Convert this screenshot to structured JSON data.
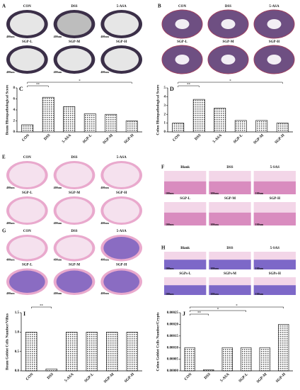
{
  "image_panels": [
    {
      "label": "A",
      "titles": [
        "CON",
        "DSS",
        "5-ASA",
        "SGP-L",
        "SGP-M",
        "SGP-H"
      ],
      "scale": "400um"
    },
    {
      "label": "B",
      "titles": [
        "CON",
        "DSS",
        "5-ASA",
        "SGP-L",
        "SGP-M",
        "SGP-H"
      ]
    },
    {
      "label": "E",
      "titles": [
        "CON",
        "DSS",
        "5-ASA",
        "SGP-L",
        "SGP-M",
        "SGP-H"
      ],
      "scale": "400um"
    },
    {
      "label": "F",
      "titles": [
        "Blank",
        "DSS",
        "5-SAS",
        "SGP-L",
        "SGP-M",
        "SGP-H"
      ],
      "scale": "100um"
    },
    {
      "label": "G",
      "titles": [
        "CON",
        "DSS",
        "5-ASA",
        "SGP-L",
        "SGP-M",
        "SGP-H"
      ],
      "scale": "400um"
    },
    {
      "label": "H",
      "titles": [
        "Blank",
        "DSS",
        "5-SAS",
        "SGPs-L",
        "SGPs-M",
        "SGPs-H"
      ],
      "scale": "100um"
    }
  ],
  "chart_data": [
    {
      "type": "bar",
      "panel_label": "C",
      "y_label": "Ileum Histopathological Score",
      "categories": [
        "CON",
        "DSS",
        "5-ASA",
        "SGP-L",
        "SGP-M",
        "SGP-H"
      ],
      "values": [
        1.3,
        6.3,
        4.6,
        3.3,
        3.2,
        2.0
      ],
      "ylim": [
        0,
        8
      ],
      "yticks": [
        0,
        2,
        4,
        6,
        8
      ],
      "annotations": [
        "*",
        "**"
      ]
    },
    {
      "type": "bar",
      "panel_label": "D",
      "y_label": "Colon Histopathological Score",
      "categories": [
        "CON",
        "DSS",
        "5-ASA",
        "SGP-L",
        "SGP-M",
        "SGP-H"
      ],
      "values": [
        1.0,
        3.7,
        2.7,
        1.3,
        1.3,
        1.0
      ],
      "ylim": [
        0,
        5
      ],
      "yticks": [
        0,
        1,
        2,
        3,
        4,
        5
      ],
      "annotations": [
        "*",
        "**"
      ]
    },
    {
      "type": "bar",
      "panel_label": "I",
      "y_label": "Ileum Goblet Cells Number/Villus",
      "categories": [
        "CON",
        "DSS",
        "5-ASA",
        "SGP-L",
        "SGP-M",
        "SGP-H"
      ],
      "values": [
        1.0,
        0.05,
        1.0,
        1.0,
        1.0,
        1.0
      ],
      "ylim": [
        0,
        1.5
      ],
      "yticks": [
        {
          "value": 0,
          "label": "0.0"
        },
        {
          "value": 0.5,
          "label": "0.5"
        },
        {
          "value": 1,
          "label": "1.0"
        },
        {
          "value": 1.5,
          "label": "1.5"
        }
      ],
      "annotations": [
        "**"
      ]
    },
    {
      "type": "bar",
      "panel_label": "J",
      "y_label": "Colon Goblet Cells Number/Crypts",
      "categories": [
        "CON",
        "DSS",
        "5-ASA",
        "SGP-L",
        "SGP-M",
        "SGP-H"
      ],
      "values": [
        0.0001,
        5e-06,
        0.0001,
        0.0001,
        0.0001,
        0.0002
      ],
      "ylim": [
        0,
        0.00025
      ],
      "yticks": [
        {
          "value": 0,
          "label": "0.00000"
        },
        {
          "value": 5e-05,
          "label": "0.00005"
        },
        {
          "value": 0.0001,
          "label": "0.00010"
        },
        {
          "value": 0.00015,
          "label": "0.00015"
        },
        {
          "value": 0.0002,
          "label": "0.00020"
        },
        {
          "value": 0.00025,
          "label": "0.00025"
        }
      ],
      "annotations": [
        "*",
        "*",
        "**"
      ]
    }
  ]
}
